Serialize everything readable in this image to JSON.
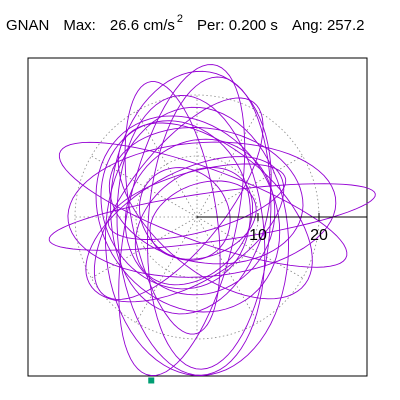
{
  "header": {
    "station": "GNAN",
    "max_label": "Max:",
    "max_value": "26.6",
    "max_unit": "cm/s",
    "max_exp": "2",
    "per_label": "Per:",
    "per_value": "0.200 s",
    "ang_label": "Ang:",
    "ang_value": "257.2"
  },
  "chart_data": {
    "type": "polar-particle-motion",
    "axis_ticks": [
      {
        "value": 10,
        "label": "10"
      },
      {
        "value": 20,
        "label": "20"
      }
    ],
    "rings": [
      10,
      20
    ],
    "spokes_deg": [
      0,
      30,
      60,
      90,
      120,
      150,
      180,
      210,
      240,
      270,
      300,
      330
    ],
    "max_amplitude": 26.6,
    "period_s": 0.2,
    "angle_deg": 257.2,
    "trace_color": "#9400d3",
    "marker_color": "#009e73",
    "marker_point": {
      "x": -7.5,
      "y": -26.8
    },
    "orbits": [
      {
        "cx": 0.8,
        "cy": 1.2,
        "a": 22.0,
        "b": 11.0,
        "rot": 4,
        "phase": 1.0
      },
      {
        "cx": -3.0,
        "cy": 3.0,
        "a": 20.0,
        "b": 8.0,
        "rot": 52,
        "phase": 2.1
      },
      {
        "cx": 2.0,
        "cy": -1.0,
        "a": 24.0,
        "b": 10.0,
        "rot": 86,
        "phase": 0.3
      },
      {
        "cx": -1.5,
        "cy": 0.5,
        "a": 17.0,
        "b": 14.0,
        "rot": 125,
        "phase": 4.0
      },
      {
        "cx": 1.0,
        "cy": 2.0,
        "a": 25.0,
        "b": 6.0,
        "rot": 160,
        "phase": 5.1
      },
      {
        "cx": -2.0,
        "cy": -2.0,
        "a": 18.0,
        "b": 9.0,
        "rot": 30,
        "phase": 3.3
      },
      {
        "cx": 0.5,
        "cy": 0.0,
        "a": 13.0,
        "b": 12.0,
        "rot": 60,
        "phase": 1.7
      },
      {
        "cx": -4.0,
        "cy": 1.5,
        "a": 21.0,
        "b": 7.0,
        "rot": 100,
        "phase": 2.6
      },
      {
        "cx": 3.0,
        "cy": 1.0,
        "a": 19.0,
        "b": 10.0,
        "rot": 140,
        "phase": 0.9
      },
      {
        "cx": -1.0,
        "cy": -3.0,
        "a": 23.0,
        "b": 12.0,
        "rot": 95,
        "phase": 3.9
      },
      {
        "cx": 0.0,
        "cy": 2.5,
        "a": 15.0,
        "b": 5.0,
        "rot": 15,
        "phase": 4.6
      },
      {
        "cx": -2.5,
        "cy": -0.5,
        "a": 26.0,
        "b": 9.0,
        "rot": 78,
        "phase": 5.8
      },
      {
        "cx": 1.5,
        "cy": 3.5,
        "a": 16.0,
        "b": 11.0,
        "rot": 170,
        "phase": 2.2
      },
      {
        "cx": -0.5,
        "cy": -1.5,
        "a": 11.0,
        "b": 8.0,
        "rot": 45,
        "phase": 0.6
      },
      {
        "cx": 2.5,
        "cy": 0.0,
        "a": 27.0,
        "b": 4.0,
        "rot": 8,
        "phase": 1.4
      },
      {
        "cx": -3.5,
        "cy": 2.0,
        "a": 14.0,
        "b": 12.0,
        "rot": 110,
        "phase": 3.0
      },
      {
        "cx": 0.0,
        "cy": -4.0,
        "a": 22.0,
        "b": 15.0,
        "rot": 92,
        "phase": 4.2
      },
      {
        "cx": -1.0,
        "cy": 4.0,
        "a": 20.0,
        "b": 13.0,
        "rot": 82,
        "phase": 5.3
      },
      {
        "cx": 1.0,
        "cy": -0.5,
        "a": 9.0,
        "b": 6.0,
        "rot": 20,
        "phase": 2.9
      },
      {
        "cx": -2.0,
        "cy": 0.5,
        "a": 8.0,
        "b": 7.0,
        "rot": 130,
        "phase": 1.1
      }
    ]
  }
}
